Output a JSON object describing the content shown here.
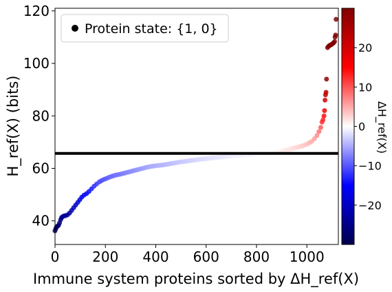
{
  "chart_data": {
    "type": "scatter",
    "title": "",
    "xlabel": "Immune system proteins sorted by ΔH_ref(X)",
    "ylabel": "H_ref(X) (bits)",
    "xlim": [
      0,
      1125
    ],
    "ylim": [
      31,
      121
    ],
    "x_ticks": [
      "0",
      "200",
      "400",
      "600",
      "800",
      "1000"
    ],
    "y_ticks": [
      "40",
      "60",
      "80",
      "100",
      "120"
    ],
    "grid": false,
    "legend": {
      "placement": "top-left",
      "entry": "Protein state: {1, 0}",
      "marker": "black-circle"
    },
    "reference_line": {
      "y": 65.7,
      "color": "#000000"
    },
    "colorbar": {
      "label": "ΔH_ref(X)",
      "range": [
        -30,
        30
      ],
      "ticks": [
        "−20",
        "−10",
        "0",
        "10",
        "20"
      ],
      "colormap": "seismic"
    },
    "series": [
      {
        "points": [
          [
            0,
            36.2
          ],
          [
            3,
            37.0
          ],
          [
            6,
            37.6
          ],
          [
            10,
            38.0
          ],
          [
            14,
            38.3
          ],
          [
            18,
            39.2
          ],
          [
            22,
            40.4
          ],
          [
            26,
            41.2
          ],
          [
            30,
            41.6
          ],
          [
            36,
            41.9
          ],
          [
            42,
            42.0
          ],
          [
            50,
            42.3
          ],
          [
            58,
            43.0
          ],
          [
            66,
            44.0
          ],
          [
            74,
            45.0
          ],
          [
            82,
            46.0
          ],
          [
            90,
            47.0
          ],
          [
            98,
            48.0
          ],
          [
            106,
            49.0
          ],
          [
            115,
            49.8
          ],
          [
            125,
            50.4
          ],
          [
            135,
            51.2
          ],
          [
            145,
            52.2
          ],
          [
            155,
            53.2
          ],
          [
            165,
            54.0
          ],
          [
            175,
            54.8
          ],
          [
            190,
            55.6
          ],
          [
            205,
            56.2
          ],
          [
            220,
            56.8
          ],
          [
            240,
            57.4
          ],
          [
            260,
            57.8
          ],
          [
            280,
            58.3
          ],
          [
            300,
            58.8
          ],
          [
            320,
            59.3
          ],
          [
            340,
            59.8
          ],
          [
            360,
            60.3
          ],
          [
            380,
            60.7
          ],
          [
            400,
            61.0
          ],
          [
            430,
            61.3
          ],
          [
            460,
            61.8
          ],
          [
            490,
            62.3
          ],
          [
            520,
            62.7
          ],
          [
            550,
            63.1
          ],
          [
            580,
            63.5
          ],
          [
            610,
            63.8
          ],
          [
            640,
            64.1
          ],
          [
            670,
            64.4
          ],
          [
            700,
            64.7
          ],
          [
            730,
            64.9
          ],
          [
            760,
            65.1
          ],
          [
            790,
            65.3
          ],
          [
            820,
            65.5
          ],
          [
            850,
            65.8
          ],
          [
            880,
            66.2
          ],
          [
            900,
            66.6
          ],
          [
            920,
            67.0
          ],
          [
            940,
            67.5
          ],
          [
            960,
            68.0
          ],
          [
            980,
            68.5
          ],
          [
            1000,
            69.2
          ],
          [
            1020,
            70.3
          ],
          [
            1030,
            71.3
          ],
          [
            1040,
            72.5
          ],
          [
            1048,
            74.0
          ],
          [
            1055,
            75.6
          ],
          [
            1060,
            77.6
          ],
          [
            1064,
            78.5
          ],
          [
            1068,
            80.0
          ],
          [
            1070,
            82.0
          ],
          [
            1072,
            86.0
          ],
          [
            1074,
            88.0
          ],
          [
            1076,
            89.0
          ],
          [
            1078,
            94.0
          ],
          [
            1082,
            106.0
          ],
          [
            1086,
            106.5
          ],
          [
            1090,
            106.8
          ],
          [
            1094,
            107.0
          ],
          [
            1098,
            107.2
          ],
          [
            1102,
            107.5
          ],
          [
            1106,
            107.8
          ],
          [
            1110,
            108.3
          ],
          [
            1112,
            110.0
          ],
          [
            1114,
            110.8
          ],
          [
            1116,
            116.8
          ]
        ]
      }
    ]
  }
}
